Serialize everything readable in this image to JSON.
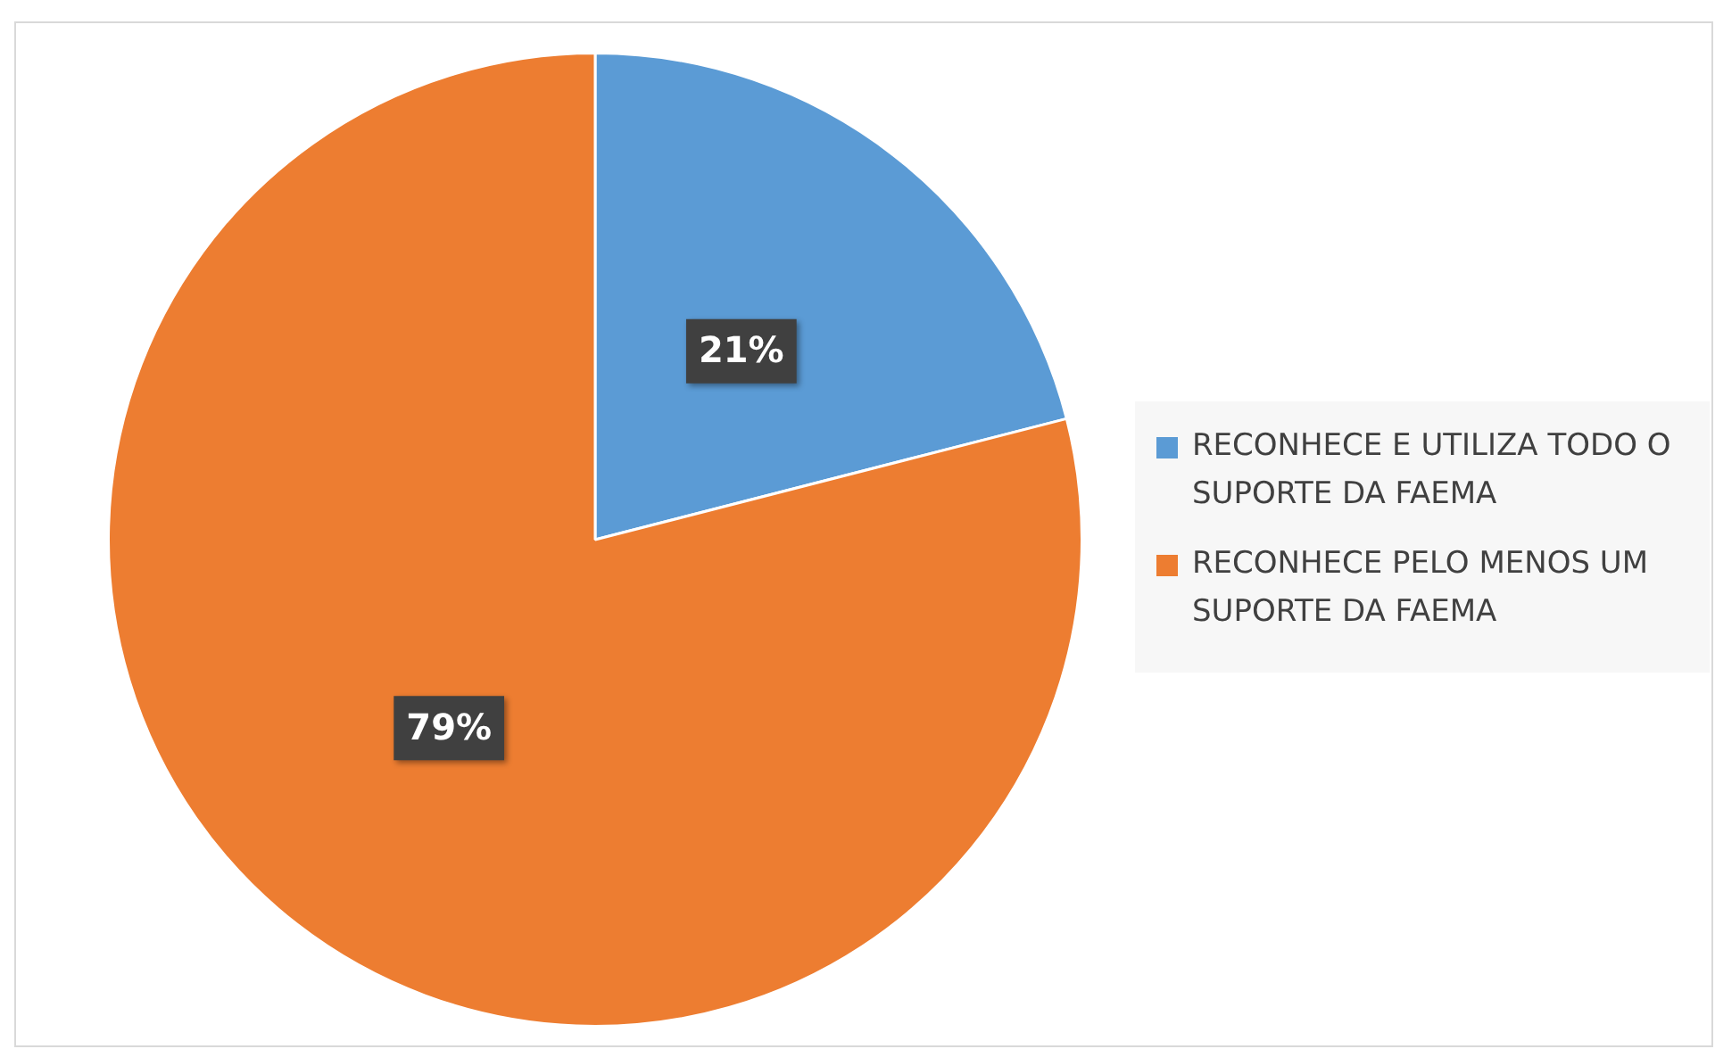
{
  "chart_data": {
    "type": "pie",
    "categories": [
      "RECONHECE E UTILIZA TODO O SUPORTE DA FAEMA",
      "RECONHECE PELO MENOS UM SUPORTE DA FAEMA"
    ],
    "values": [
      21,
      79
    ],
    "colors": [
      "#5b9bd5",
      "#ed7d31"
    ],
    "value_labels": [
      "21%",
      "79%"
    ],
    "legend": "right"
  }
}
